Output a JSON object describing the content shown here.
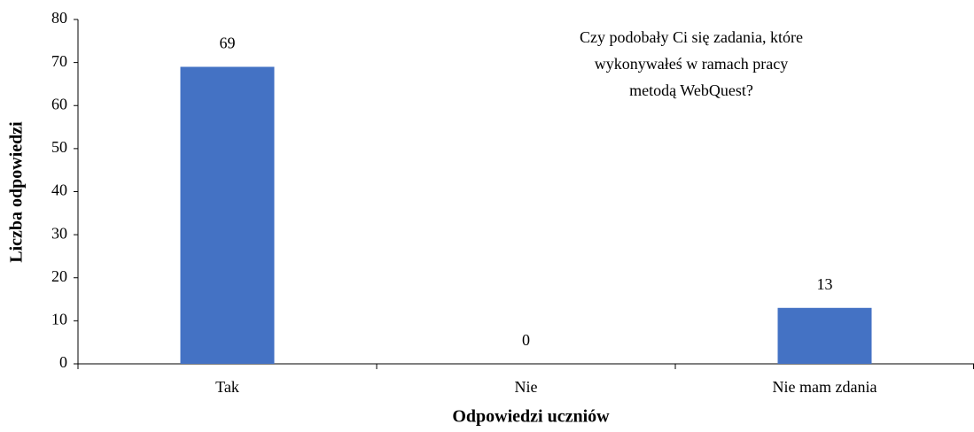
{
  "chart_data": {
    "type": "bar",
    "title": [
      "Czy podobały Ci się zadania, które",
      "wykonywałeś w ramach pracy",
      "metodą WebQuest?"
    ],
    "x_label": "Odpowiedzi uczniów",
    "y_label": "Liczba odpowiedzi",
    "categories": [
      "Tak",
      "Nie",
      "Nie mam zdania"
    ],
    "values": [
      69,
      0,
      13
    ],
    "color": "#4472c4",
    "ylim": [
      0,
      80
    ],
    "yticks": [
      0,
      10,
      20,
      30,
      40,
      50,
      60,
      70,
      80
    ],
    "grid": false
  }
}
